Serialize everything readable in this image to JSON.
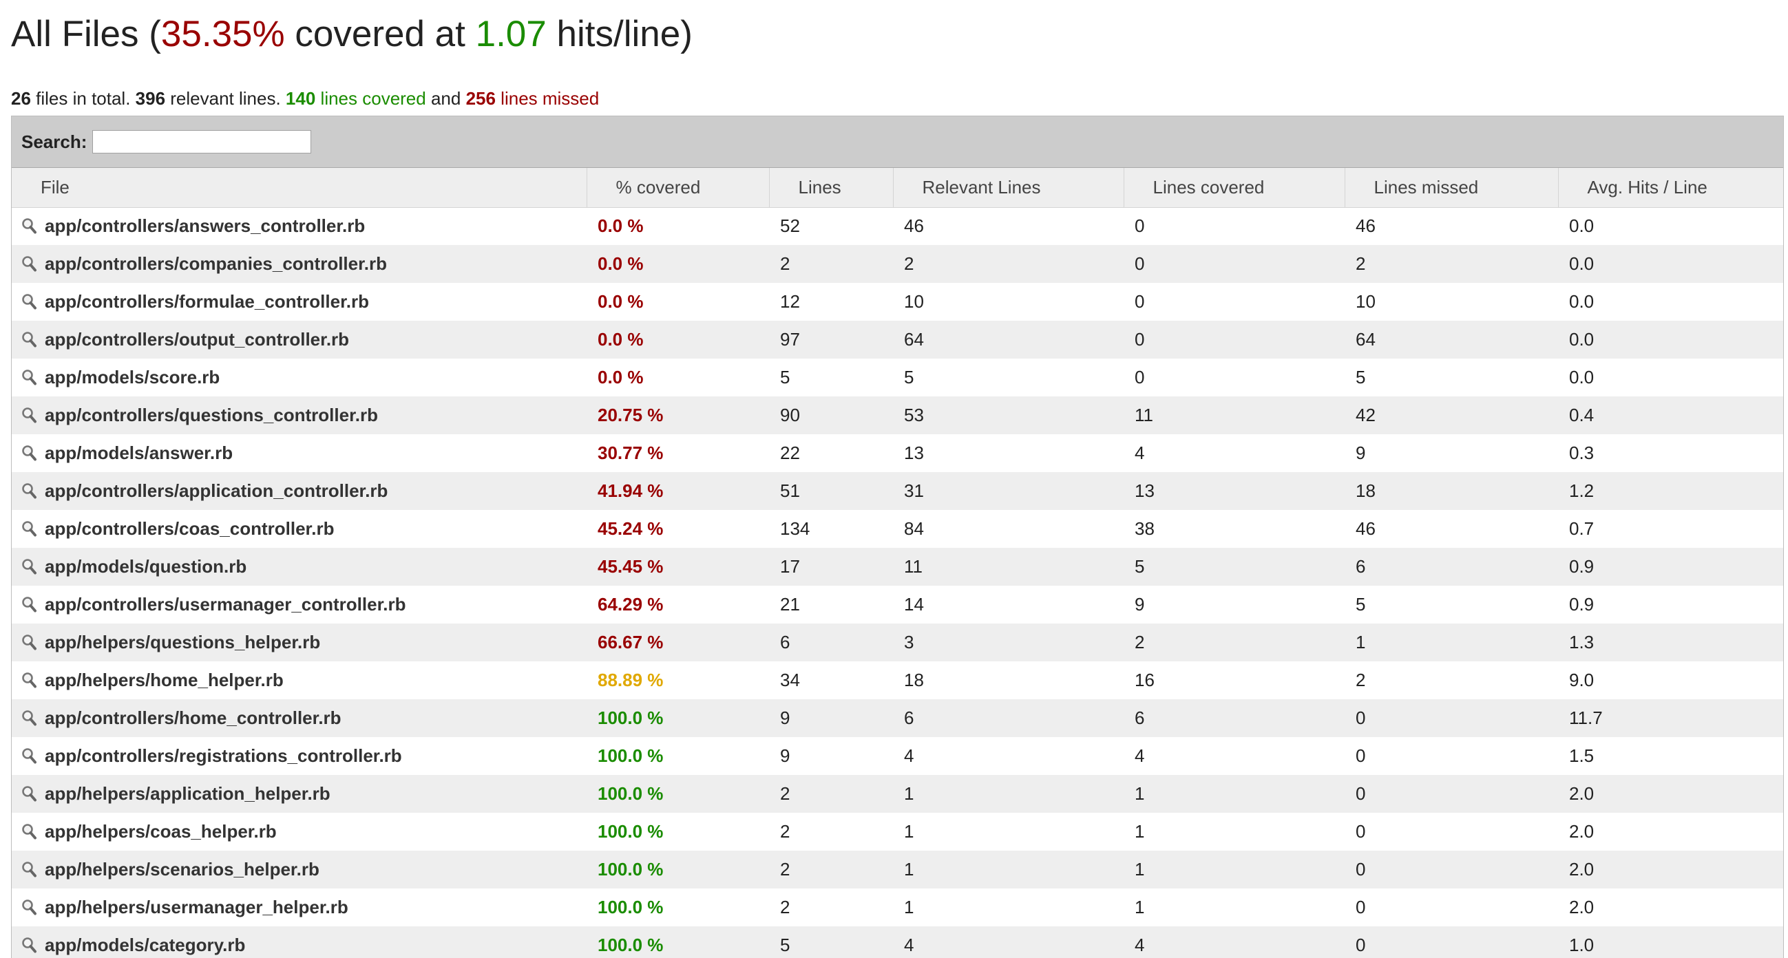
{
  "header": {
    "title_prefix": "All Files (",
    "covered_percent": "35.35%",
    "title_middle": " covered at ",
    "hits_per_line": "1.07",
    "title_suffix": " hits/line)"
  },
  "summary": {
    "files_count": "26",
    "files_text": " files in total. ",
    "relevant_count": "396",
    "relevant_text": " relevant lines. ",
    "covered_count": "140",
    "covered_text": " lines covered",
    "and_text": " and ",
    "missed_count": "256",
    "missed_text": " lines missed"
  },
  "search": {
    "label": "Search:",
    "value": ""
  },
  "columns": [
    "File",
    "% covered",
    "Lines",
    "Relevant Lines",
    "Lines covered",
    "Lines missed",
    "Avg. Hits / Line"
  ],
  "colors": {
    "low": "#990000",
    "mid": "#e0a800",
    "high": "#1a8c00",
    "row_alt": "#eeeeee",
    "header_bar": "#cccccc"
  },
  "icons": {
    "row": "magnifier-icon"
  },
  "rows": [
    {
      "file": "app/controllers/answers_controller.rb",
      "covered": "0.0 %",
      "level": "low",
      "lines": "52",
      "relevant": "46",
      "lines_covered": "0",
      "missed": "46",
      "avg": "0.0"
    },
    {
      "file": "app/controllers/companies_controller.rb",
      "covered": "0.0 %",
      "level": "low",
      "lines": "2",
      "relevant": "2",
      "lines_covered": "0",
      "missed": "2",
      "avg": "0.0"
    },
    {
      "file": "app/controllers/formulae_controller.rb",
      "covered": "0.0 %",
      "level": "low",
      "lines": "12",
      "relevant": "10",
      "lines_covered": "0",
      "missed": "10",
      "avg": "0.0"
    },
    {
      "file": "app/controllers/output_controller.rb",
      "covered": "0.0 %",
      "level": "low",
      "lines": "97",
      "relevant": "64",
      "lines_covered": "0",
      "missed": "64",
      "avg": "0.0"
    },
    {
      "file": "app/models/score.rb",
      "covered": "0.0 %",
      "level": "low",
      "lines": "5",
      "relevant": "5",
      "lines_covered": "0",
      "missed": "5",
      "avg": "0.0"
    },
    {
      "file": "app/controllers/questions_controller.rb",
      "covered": "20.75 %",
      "level": "low",
      "lines": "90",
      "relevant": "53",
      "lines_covered": "11",
      "missed": "42",
      "avg": "0.4"
    },
    {
      "file": "app/models/answer.rb",
      "covered": "30.77 %",
      "level": "low",
      "lines": "22",
      "relevant": "13",
      "lines_covered": "4",
      "missed": "9",
      "avg": "0.3"
    },
    {
      "file": "app/controllers/application_controller.rb",
      "covered": "41.94 %",
      "level": "low",
      "lines": "51",
      "relevant": "31",
      "lines_covered": "13",
      "missed": "18",
      "avg": "1.2"
    },
    {
      "file": "app/controllers/coas_controller.rb",
      "covered": "45.24 %",
      "level": "low",
      "lines": "134",
      "relevant": "84",
      "lines_covered": "38",
      "missed": "46",
      "avg": "0.7"
    },
    {
      "file": "app/models/question.rb",
      "covered": "45.45 %",
      "level": "low",
      "lines": "17",
      "relevant": "11",
      "lines_covered": "5",
      "missed": "6",
      "avg": "0.9"
    },
    {
      "file": "app/controllers/usermanager_controller.rb",
      "covered": "64.29 %",
      "level": "low",
      "lines": "21",
      "relevant": "14",
      "lines_covered": "9",
      "missed": "5",
      "avg": "0.9"
    },
    {
      "file": "app/helpers/questions_helper.rb",
      "covered": "66.67 %",
      "level": "low",
      "lines": "6",
      "relevant": "3",
      "lines_covered": "2",
      "missed": "1",
      "avg": "1.3"
    },
    {
      "file": "app/helpers/home_helper.rb",
      "covered": "88.89 %",
      "level": "mid",
      "lines": "34",
      "relevant": "18",
      "lines_covered": "16",
      "missed": "2",
      "avg": "9.0"
    },
    {
      "file": "app/controllers/home_controller.rb",
      "covered": "100.0 %",
      "level": "high",
      "lines": "9",
      "relevant": "6",
      "lines_covered": "6",
      "missed": "0",
      "avg": "11.7"
    },
    {
      "file": "app/controllers/registrations_controller.rb",
      "covered": "100.0 %",
      "level": "high",
      "lines": "9",
      "relevant": "4",
      "lines_covered": "4",
      "missed": "0",
      "avg": "1.5"
    },
    {
      "file": "app/helpers/application_helper.rb",
      "covered": "100.0 %",
      "level": "high",
      "lines": "2",
      "relevant": "1",
      "lines_covered": "1",
      "missed": "0",
      "avg": "2.0"
    },
    {
      "file": "app/helpers/coas_helper.rb",
      "covered": "100.0 %",
      "level": "high",
      "lines": "2",
      "relevant": "1",
      "lines_covered": "1",
      "missed": "0",
      "avg": "2.0"
    },
    {
      "file": "app/helpers/scenarios_helper.rb",
      "covered": "100.0 %",
      "level": "high",
      "lines": "2",
      "relevant": "1",
      "lines_covered": "1",
      "missed": "0",
      "avg": "2.0"
    },
    {
      "file": "app/helpers/usermanager_helper.rb",
      "covered": "100.0 %",
      "level": "high",
      "lines": "2",
      "relevant": "1",
      "lines_covered": "1",
      "missed": "0",
      "avg": "2.0"
    },
    {
      "file": "app/models/category.rb",
      "covered": "100.0 %",
      "level": "high",
      "lines": "5",
      "relevant": "4",
      "lines_covered": "4",
      "missed": "0",
      "avg": "1.0"
    }
  ]
}
